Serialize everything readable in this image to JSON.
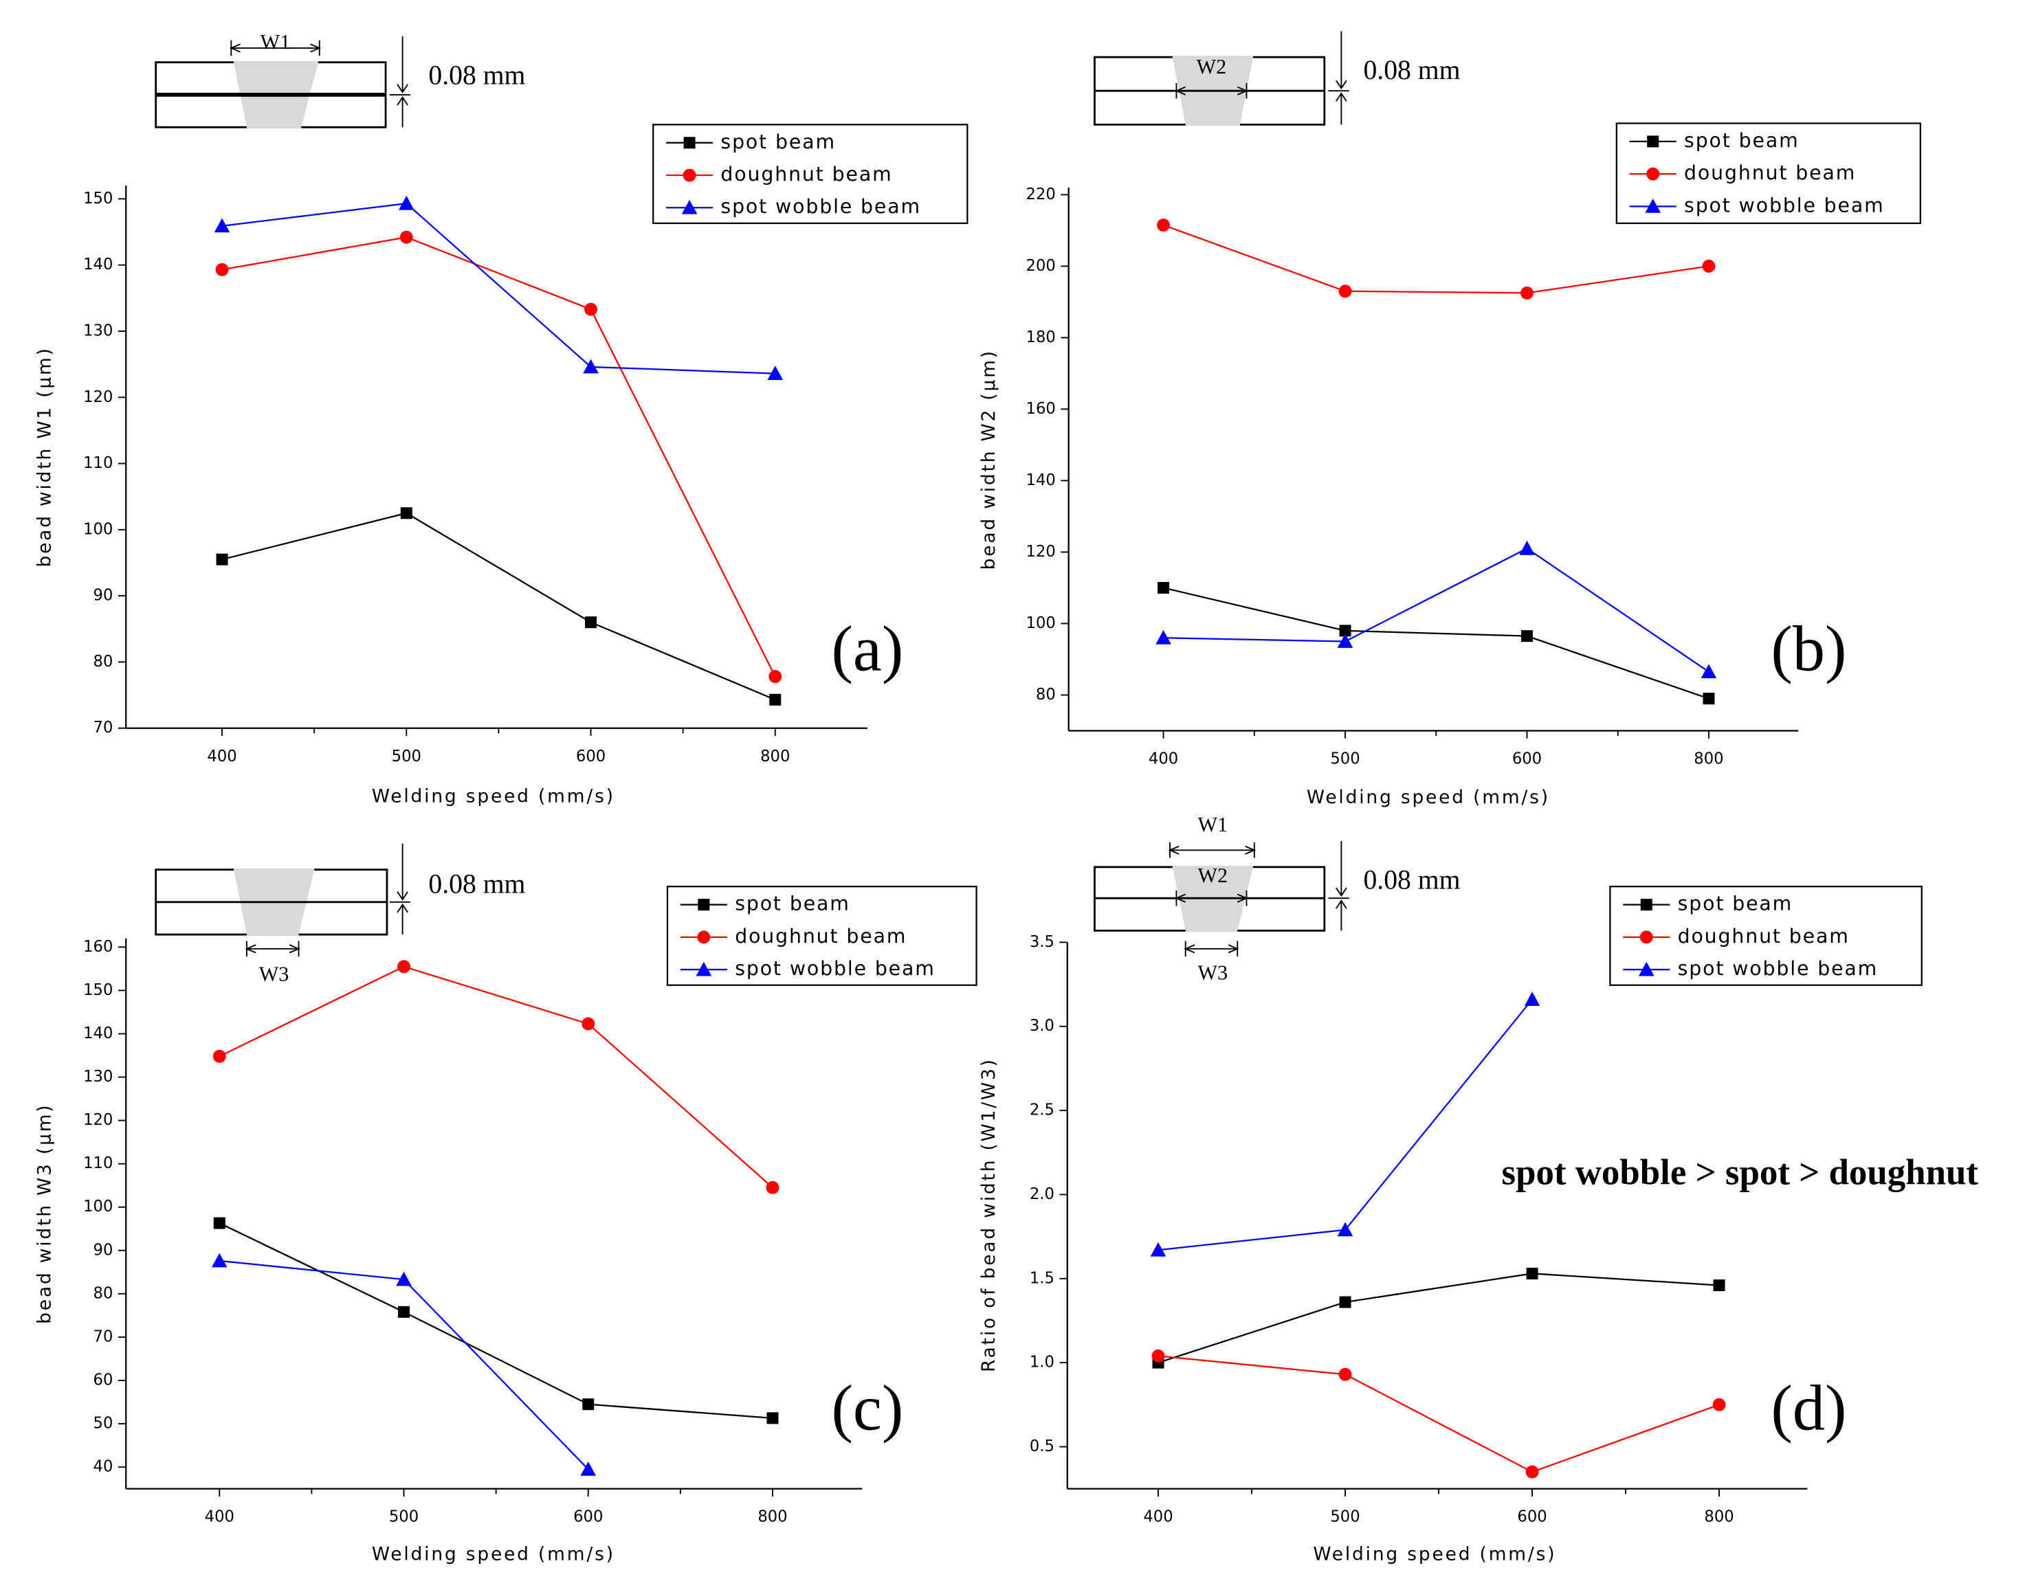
{
  "chart_data": [
    {
      "type": "line",
      "panel": "(a)",
      "xlabel": "Welding speed (mm/s)",
      "ylabel": "bead width W1 (μm)",
      "categories": [
        "400",
        "500",
        "600",
        "800"
      ],
      "ylim": [
        70,
        152
      ],
      "yticks": [
        70,
        80,
        90,
        100,
        110,
        120,
        130,
        140,
        150
      ],
      "diagram": {
        "widths": [
          "W1"
        ],
        "thickness": "0.08 mm"
      },
      "series": [
        {
          "name": "spot beam",
          "color": "#000000",
          "marker": "square",
          "values": [
            95.5,
            102.5,
            86,
            74.3
          ]
        },
        {
          "name": "doughnut beam",
          "color": "#ff0000",
          "marker": "circle",
          "values": [
            139.3,
            144.2,
            133.3,
            77.8
          ]
        },
        {
          "name": "spot wobble beam",
          "color": "#0000ff",
          "marker": "triangle",
          "values": [
            145.9,
            149.3,
            124.6,
            123.6
          ]
        }
      ]
    },
    {
      "type": "line",
      "panel": "(b)",
      "xlabel": "Welding speed (mm/s)",
      "ylabel": "bead width W2 (μm)",
      "categories": [
        "400",
        "500",
        "600",
        "800"
      ],
      "ylim": [
        70,
        222
      ],
      "yticks": [
        80,
        100,
        120,
        140,
        160,
        180,
        200,
        220
      ],
      "diagram": {
        "widths": [
          "W2"
        ],
        "thickness": "0.08 mm"
      },
      "series": [
        {
          "name": "spot beam",
          "color": "#000000",
          "marker": "square",
          "values": [
            110,
            98,
            96.5,
            79
          ]
        },
        {
          "name": "doughnut beam",
          "color": "#ff0000",
          "marker": "circle",
          "values": [
            211.5,
            193,
            192.5,
            200
          ]
        },
        {
          "name": "spot wobble beam",
          "color": "#0000ff",
          "marker": "triangle",
          "values": [
            96,
            95,
            121,
            86.5
          ]
        }
      ]
    },
    {
      "type": "line",
      "panel": "(c)",
      "xlabel": "Welding speed (mm/s)",
      "ylabel": "bead width W3 (μm)",
      "categories": [
        "400",
        "500",
        "600",
        "800"
      ],
      "ylim": [
        35,
        162
      ],
      "yticks": [
        40,
        50,
        60,
        70,
        80,
        90,
        100,
        110,
        120,
        130,
        140,
        150,
        160
      ],
      "diagram": {
        "widths": [
          "W3"
        ],
        "thickness": "0.08 mm"
      },
      "series": [
        {
          "name": "spot beam",
          "color": "#000000",
          "marker": "square",
          "values": [
            96.3,
            75.8,
            54.5,
            51.3
          ]
        },
        {
          "name": "doughnut beam",
          "color": "#ff0000",
          "marker": "circle",
          "values": [
            134.8,
            155.5,
            142.3,
            104.5
          ]
        },
        {
          "name": "spot wobble beam",
          "color": "#0000ff",
          "marker": "triangle",
          "values": [
            87.6,
            83.3,
            39.5,
            null
          ]
        }
      ]
    },
    {
      "type": "line",
      "panel": "(d)",
      "xlabel": "Welding speed (mm/s)",
      "ylabel": "Ratio of bead width (W1/W3)",
      "categories": [
        "400",
        "500",
        "600",
        "800"
      ],
      "ylim": [
        0.25,
        3.5
      ],
      "yticks": [
        0.5,
        {
          "value": 1,
          "label": "1.0"
        },
        1.5,
        {
          "value": 2,
          "label": "2.0"
        },
        2.5,
        {
          "value": 3,
          "label": "3.0"
        },
        3.5
      ],
      "annotation": "spot wobble > spot > doughnut",
      "diagram": {
        "widths": [
          "W1",
          "W2",
          "W3"
        ],
        "thickness": "0.08 mm"
      },
      "series": [
        {
          "name": "spot beam",
          "color": "#000000",
          "marker": "square",
          "values": [
            1.0,
            1.36,
            1.53,
            1.46
          ]
        },
        {
          "name": "doughnut beam",
          "color": "#ff0000",
          "marker": "circle",
          "values": [
            1.04,
            0.93,
            0.35,
            0.75
          ]
        },
        {
          "name": "spot wobble beam",
          "color": "#0000ff",
          "marker": "triangle",
          "values": [
            1.67,
            1.79,
            3.16,
            null
          ]
        }
      ]
    }
  ]
}
